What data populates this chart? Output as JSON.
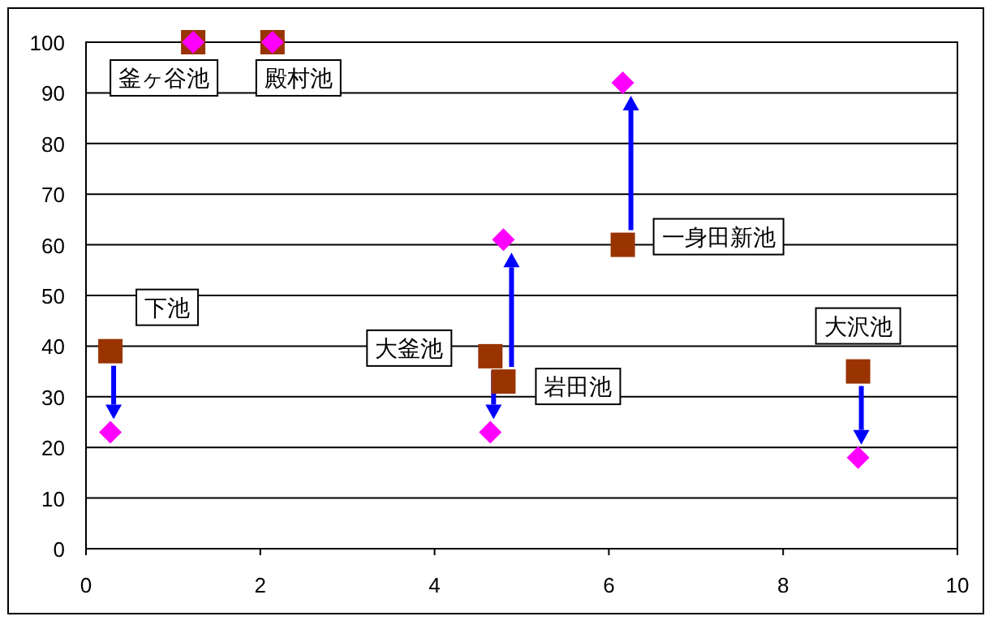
{
  "chart_data": {
    "type": "scatter",
    "x": [
      0.28,
      1.23,
      2.14,
      4.64,
      4.79,
      6.16,
      8.86
    ],
    "series": [
      {
        "color": "#993300",
        "marker": "square",
        "values": [
          39,
          100,
          100,
          38,
          33,
          60,
          35
        ]
      },
      {
        "color": "#ff00ff",
        "marker": "diamond",
        "values": [
          23,
          100,
          100,
          23,
          61,
          92,
          18
        ]
      }
    ],
    "annotations": [
      {
        "text": "下池",
        "x": 0.28,
        "y": 39
      },
      {
        "text": "釜ヶ谷池",
        "x": 1.23,
        "y": 100
      },
      {
        "text": "殿村池",
        "x": 2.14,
        "y": 100
      },
      {
        "text": "大釜池",
        "x": 4.64,
        "y": 38
      },
      {
        "text": "岩田池",
        "x": 4.79,
        "y": 33
      },
      {
        "text": "一身田新池",
        "x": 6.16,
        "y": 60
      },
      {
        "text": "大沢池",
        "x": 8.86,
        "y": 35
      }
    ],
    "xlim": [
      0,
      10
    ],
    "xticks": [
      0,
      2,
      4,
      6,
      8,
      10
    ],
    "ylim": [
      0,
      100
    ],
    "yticks": [
      0,
      10,
      20,
      30,
      40,
      50,
      60,
      70,
      80,
      90,
      100
    ],
    "grid": "y"
  }
}
